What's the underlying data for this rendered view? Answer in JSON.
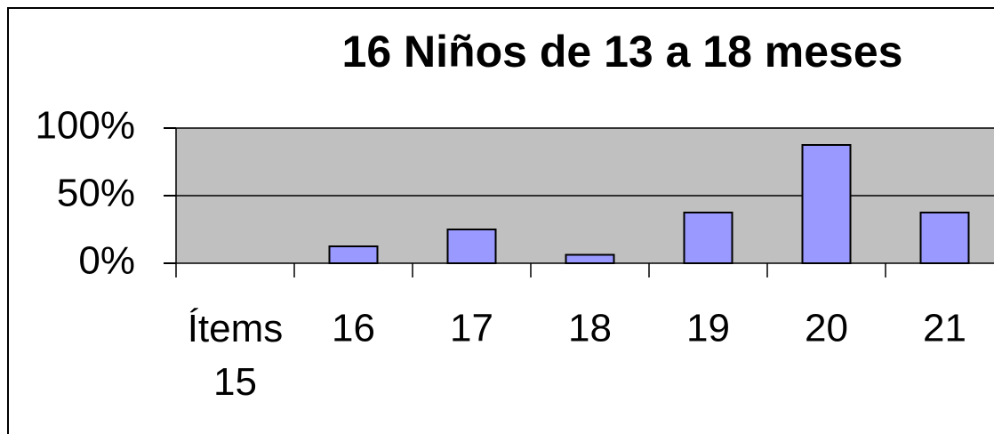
{
  "chart_data": {
    "type": "bar",
    "title": "16 Niños de 13 a 18 meses",
    "categories": [
      "Ítems 15",
      "16",
      "17",
      "18",
      "19",
      "20",
      "21"
    ],
    "values": [
      0,
      12.5,
      25,
      6.25,
      37.5,
      87.5,
      37.5
    ],
    "color": "#9999ff",
    "ylim": [
      0,
      100
    ],
    "yticks": [
      {
        "value": 0,
        "label": "0%"
      },
      {
        "value": 50,
        "label": "50%"
      },
      {
        "value": 100,
        "label": "100%"
      }
    ],
    "grid": true
  }
}
